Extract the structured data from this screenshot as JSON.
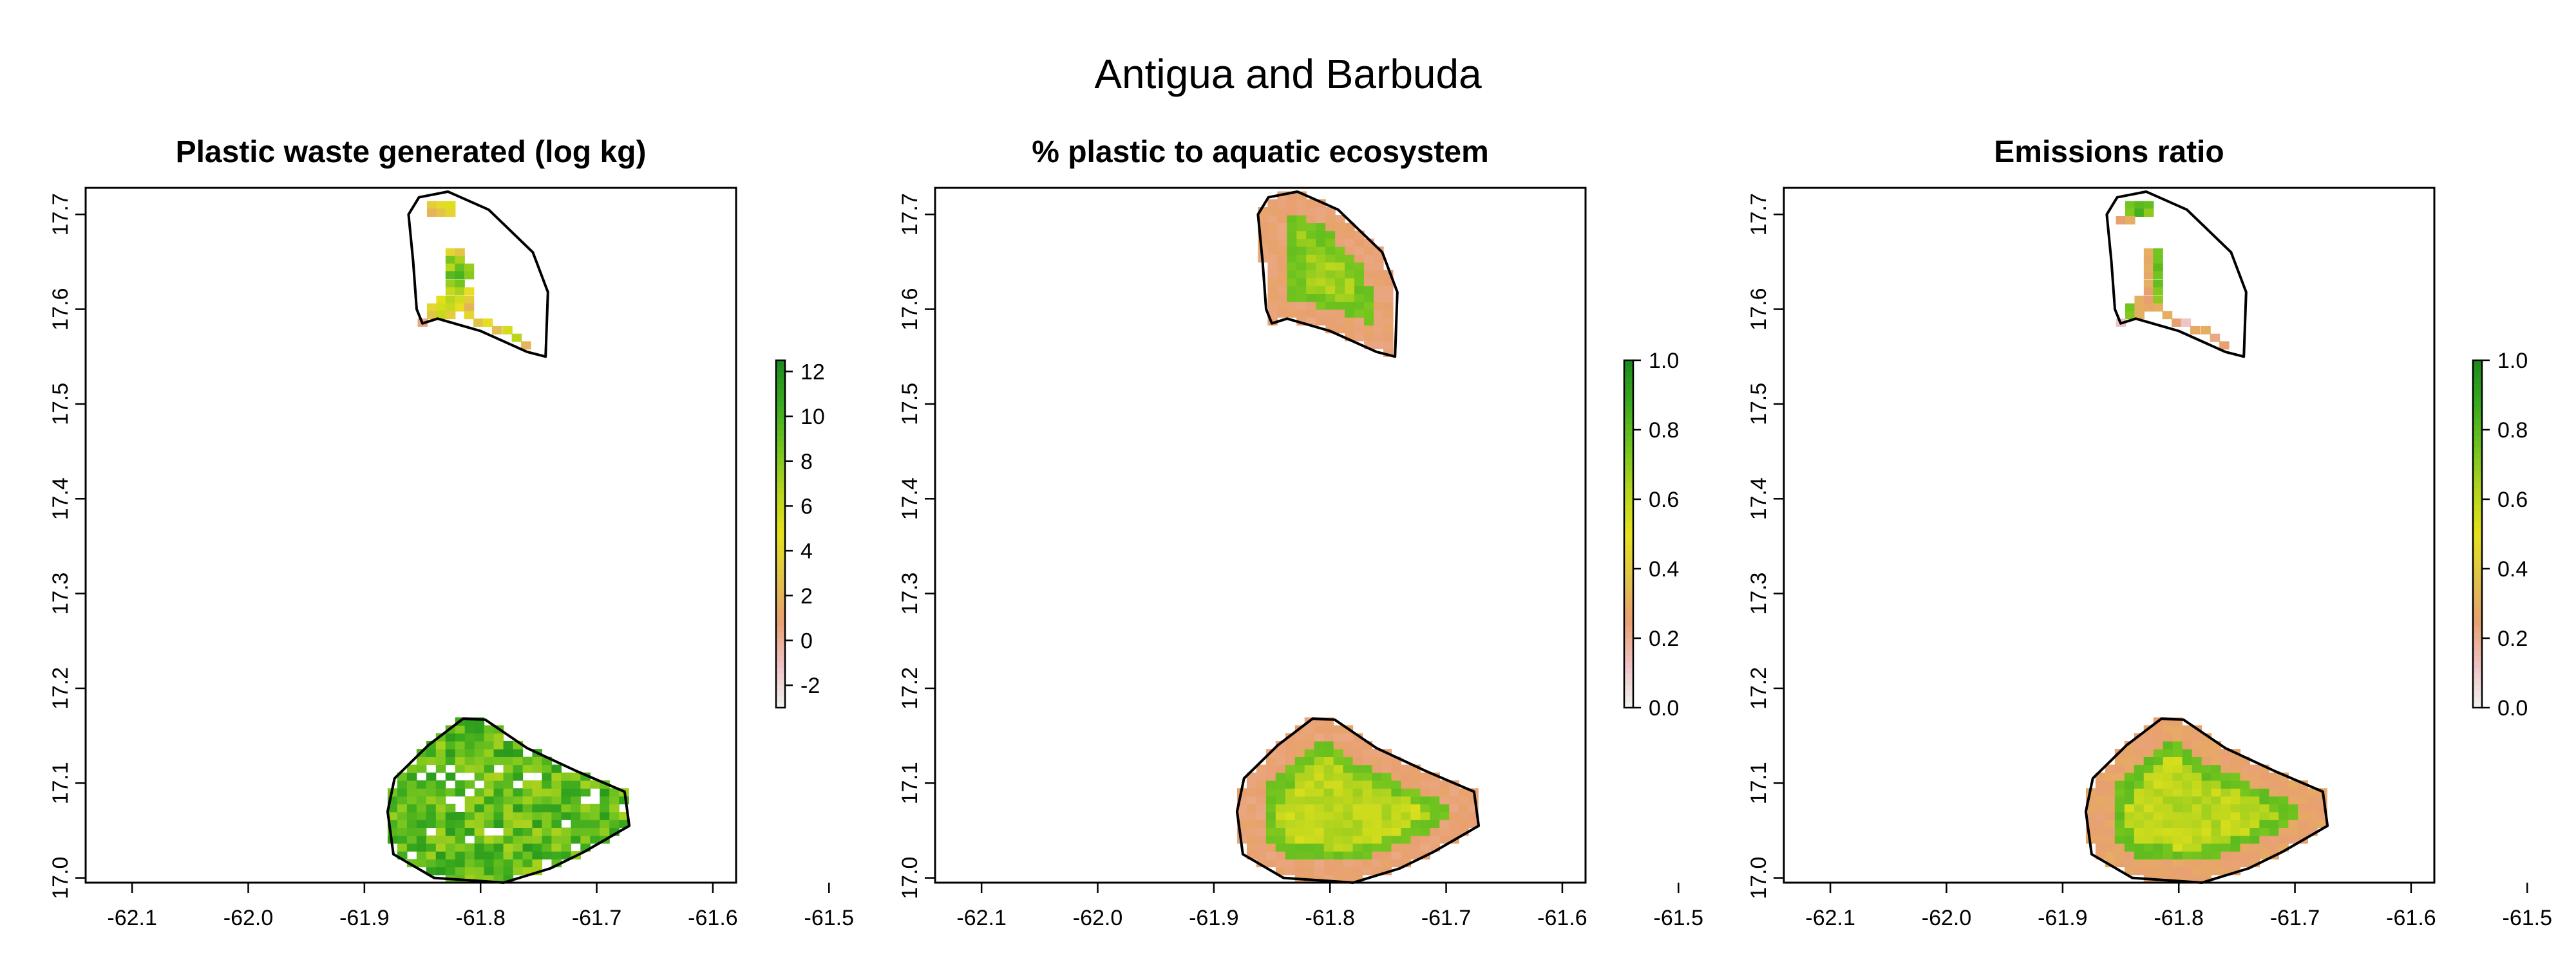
{
  "figure": {
    "title": "Antigua and Barbuda"
  },
  "axes": {
    "x_ticks": [
      "-62.1",
      "-62.0",
      "-61.9",
      "-61.8",
      "-61.7",
      "-61.6",
      "-61.5"
    ],
    "y_ticks": [
      "17.0",
      "17.1",
      "17.2",
      "17.3",
      "17.4",
      "17.5",
      "17.6",
      "17.7"
    ],
    "xlim": [
      -62.14,
      -61.58
    ],
    "ylim": [
      16.995,
      17.728
    ]
  },
  "colors": {
    "ramp": [
      "#F2F2F2",
      "#EFC2C2",
      "#E8A070",
      "#E1C24A",
      "#E6E21C",
      "#B4D41E",
      "#72C41F",
      "#3AAA1E",
      "#1C8A1C"
    ],
    "background": "#ffffff",
    "outline": "#000000"
  },
  "panels": [
    {
      "title": "Plastic waste generated (log kg)",
      "legend_ticks": [
        "-2",
        "0",
        "2",
        "4",
        "6",
        "8",
        "10",
        "12"
      ],
      "legend_range": [
        -3,
        12.5
      ]
    },
    {
      "title": "% plastic to aquatic ecosystem",
      "legend_ticks": [
        "0.0",
        "0.2",
        "0.4",
        "0.6",
        "0.8",
        "1.0"
      ],
      "legend_range": [
        0,
        1
      ]
    },
    {
      "title": "Emissions ratio",
      "legend_ticks": [
        "0.0",
        "0.2",
        "0.4",
        "0.6",
        "0.8",
        "1.0"
      ],
      "legend_range": [
        0,
        1
      ]
    }
  ],
  "chart_data": {
    "type": "heatmap",
    "map_outlines": {
      "barbuda": [
        [
          -61.853,
          17.718
        ],
        [
          -61.828,
          17.724
        ],
        [
          -61.793,
          17.705
        ],
        [
          -61.755,
          17.66
        ],
        [
          -61.742,
          17.618
        ],
        [
          -61.744,
          17.55
        ],
        [
          -61.76,
          17.555
        ],
        [
          -61.8,
          17.577
        ],
        [
          -61.837,
          17.59
        ],
        [
          -61.85,
          17.585
        ],
        [
          -61.855,
          17.6
        ],
        [
          -61.858,
          17.65
        ],
        [
          -61.862,
          17.7
        ]
      ],
      "antigua": [
        [
          -61.815,
          17.168
        ],
        [
          -61.796,
          17.167
        ],
        [
          -61.76,
          17.137
        ],
        [
          -61.718,
          17.113
        ],
        [
          -61.676,
          17.091
        ],
        [
          -61.672,
          17.055
        ],
        [
          -61.71,
          17.028
        ],
        [
          -61.74,
          17.01
        ],
        [
          -61.78,
          16.995
        ],
        [
          -61.84,
          17.0
        ],
        [
          -61.875,
          17.025
        ],
        [
          -61.88,
          17.07
        ],
        [
          -61.874,
          17.105
        ],
        [
          -61.845,
          17.14
        ]
      ]
    },
    "grid": {
      "cell_deg": 0.0083
    },
    "maps": [
      {
        "title": "Plastic waste generated (log kg)",
        "legend_ticks": [
          "-2",
          "0",
          "2",
          "4",
          "6",
          "8",
          "10",
          "12"
        ],
        "value_range": [
          -3,
          12.5
        ],
        "barbuda": {
          "coverage": "partial",
          "cells": [
            [
              -61.842,
              17.71,
              3.5
            ],
            [
              -61.834,
              17.71,
              4.2
            ],
            [
              -61.826,
              17.71,
              5.1
            ],
            [
              -61.842,
              17.702,
              2.0
            ],
            [
              -61.834,
              17.702,
              3.0
            ],
            [
              -61.826,
              17.702,
              4.0
            ],
            [
              -61.826,
              17.66,
              4.0
            ],
            [
              -61.818,
              17.66,
              3.0
            ],
            [
              -61.826,
              17.652,
              8.5
            ],
            [
              -61.818,
              17.652,
              7.0
            ],
            [
              -61.826,
              17.644,
              6.5
            ],
            [
              -61.818,
              17.644,
              9.0
            ],
            [
              -61.81,
              17.644,
              7.5
            ],
            [
              -61.826,
              17.636,
              9.5
            ],
            [
              -61.818,
              17.636,
              10.0
            ],
            [
              -61.81,
              17.636,
              8.0
            ],
            [
              -61.826,
              17.627,
              7.5
            ],
            [
              -61.818,
              17.627,
              8.5
            ],
            [
              -61.826,
              17.619,
              6.0
            ],
            [
              -61.818,
              17.619,
              7.0
            ],
            [
              -61.81,
              17.619,
              4.5
            ],
            [
              -61.834,
              17.61,
              5.0
            ],
            [
              -61.826,
              17.61,
              6.5
            ],
            [
              -61.818,
              17.61,
              5.5
            ],
            [
              -61.81,
              17.61,
              3.5
            ],
            [
              -61.842,
              17.602,
              4.0
            ],
            [
              -61.834,
              17.602,
              5.5
            ],
            [
              -61.826,
              17.602,
              6.0
            ],
            [
              -61.818,
              17.602,
              4.5
            ],
            [
              -61.81,
              17.602,
              2.0
            ],
            [
              -61.842,
              17.594,
              3.0
            ],
            [
              -61.834,
              17.594,
              6.0
            ],
            [
              -61.826,
              17.594,
              3.5
            ],
            [
              -61.85,
              17.586,
              0.5
            ],
            [
              -61.81,
              17.594,
              4.0
            ],
            [
              -61.802,
              17.586,
              3.0
            ],
            [
              -61.794,
              17.586,
              4.5
            ],
            [
              -61.786,
              17.578,
              2.5
            ],
            [
              -61.777,
              17.578,
              5.5
            ],
            [
              -61.769,
              17.57,
              6.5
            ],
            [
              -61.761,
              17.562,
              2.0
            ]
          ]
        },
        "antigua": {
          "coverage": "full",
          "low": 4.5,
          "high": 11.5,
          "gaps": 0.08
        }
      },
      {
        "title": "% plastic to aquatic ecosystem",
        "legend_ticks": [
          "0.0",
          "0.2",
          "0.4",
          "0.6",
          "0.8",
          "1.0"
        ],
        "value_range": [
          0,
          1
        ],
        "barbuda": {
          "coverage": "full",
          "edge": 0.22,
          "ring": 0.72,
          "core": 0.55
        },
        "antigua": {
          "coverage": "full",
          "edge": 0.22,
          "ring": 0.72,
          "core": 0.5
        }
      },
      {
        "title": "Emissions ratio",
        "legend_ticks": [
          "0.0",
          "0.2",
          "0.4",
          "0.6",
          "0.8",
          "1.0"
        ],
        "value_range": [
          0,
          1
        ],
        "barbuda": {
          "coverage": "partial",
          "cells": [
            [
              -61.842,
              17.71,
              0.75
            ],
            [
              -61.834,
              17.71,
              0.8
            ],
            [
              -61.826,
              17.71,
              0.78
            ],
            [
              -61.842,
              17.702,
              0.72
            ],
            [
              -61.834,
              17.702,
              0.85
            ],
            [
              -61.826,
              17.702,
              0.7
            ],
            [
              -61.85,
              17.694,
              0.25
            ],
            [
              -61.842,
              17.694,
              0.3
            ],
            [
              -61.826,
              17.66,
              0.3
            ],
            [
              -61.818,
              17.66,
              0.75
            ],
            [
              -61.826,
              17.652,
              0.28
            ],
            [
              -61.818,
              17.652,
              0.75
            ],
            [
              -61.826,
              17.644,
              0.3
            ],
            [
              -61.818,
              17.644,
              0.8
            ],
            [
              -61.826,
              17.636,
              0.28
            ],
            [
              -61.818,
              17.636,
              0.75
            ],
            [
              -61.826,
              17.627,
              0.3
            ],
            [
              -61.818,
              17.627,
              0.78
            ],
            [
              -61.826,
              17.619,
              0.25
            ],
            [
              -61.818,
              17.619,
              0.72
            ],
            [
              -61.834,
              17.61,
              0.3
            ],
            [
              -61.826,
              17.61,
              0.25
            ],
            [
              -61.818,
              17.61,
              0.7
            ],
            [
              -61.842,
              17.602,
              0.75
            ],
            [
              -61.834,
              17.602,
              0.3
            ],
            [
              -61.826,
              17.602,
              0.28
            ],
            [
              -61.818,
              17.602,
              0.3
            ],
            [
              -61.842,
              17.594,
              0.72
            ],
            [
              -61.834,
              17.594,
              0.3
            ],
            [
              -61.85,
              17.586,
              0.12
            ],
            [
              -61.81,
              17.594,
              0.3
            ],
            [
              -61.802,
              17.586,
              0.25
            ],
            [
              -61.794,
              17.586,
              0.12
            ],
            [
              -61.786,
              17.578,
              0.28
            ],
            [
              -61.777,
              17.578,
              0.3
            ],
            [
              -61.769,
              17.57,
              0.22
            ],
            [
              -61.761,
              17.562,
              0.25
            ]
          ]
        },
        "antigua": {
          "coverage": "full",
          "edge": 0.24,
          "ring": 0.74,
          "core": 0.5
        }
      }
    ]
  }
}
